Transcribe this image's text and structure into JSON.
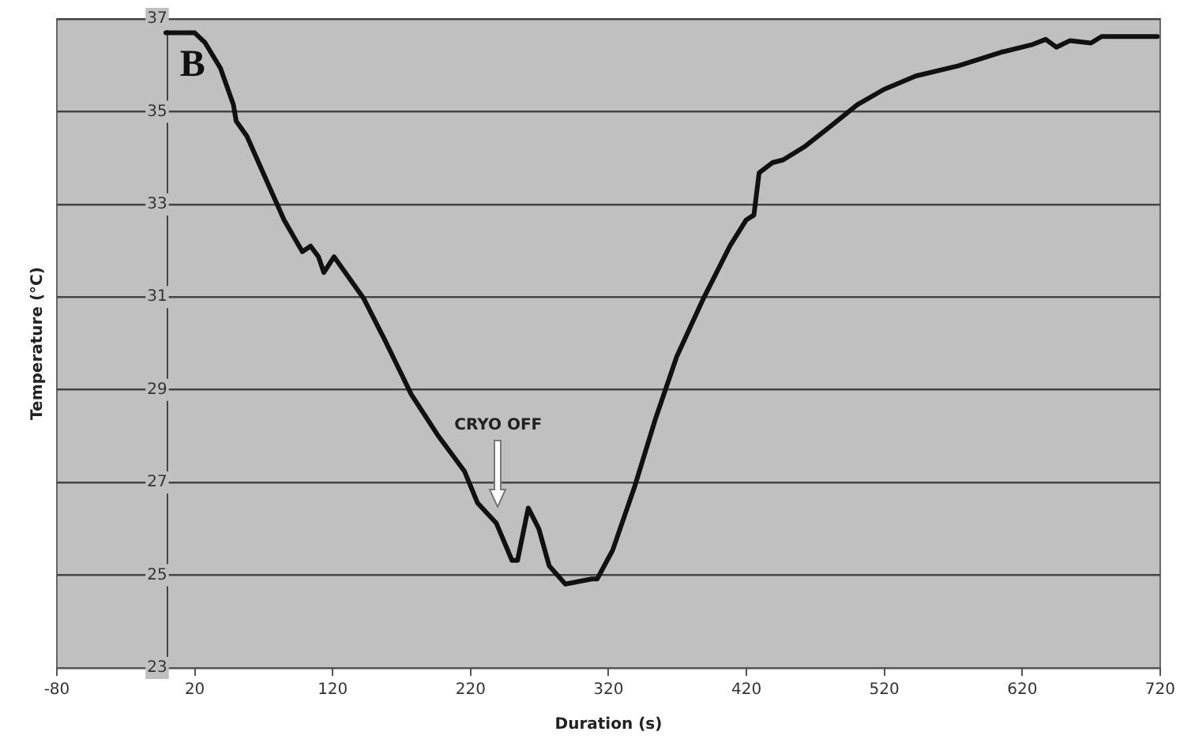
{
  "chart_data": {
    "type": "line",
    "xlabel": "Duration (s)",
    "ylabel": "Temperature (°C)",
    "annotations": [
      "B",
      "CRYO OFF"
    ],
    "xlim": [
      -80,
      720
    ],
    "xticks": [
      -80,
      20,
      120,
      220,
      320,
      420,
      520,
      620,
      720
    ],
    "ylim": [
      23,
      37
    ],
    "yticks": [
      23,
      25,
      27,
      29,
      31,
      33,
      35,
      37
    ],
    "grid": "y",
    "marker": "none",
    "line_style": "solid",
    "legend": false,
    "series": [
      {
        "color": "#111111",
        "x": [
          -1,
          20,
          27.4,
          38.6,
          48,
          50,
          57.8,
          73,
          84.8,
          98,
          104,
          109.7,
          113.6,
          121,
          142.5,
          158,
          177,
          196,
          215.6,
          225,
          238.7,
          250,
          254,
          261.8,
          269.5,
          277,
          288.7,
          308,
          311.8,
          323,
          338.8,
          354,
          369.5,
          388.8,
          408,
          419.7,
          425.4,
          429.2,
          438.8,
          446.6,
          461.9,
          481.2,
          500.4,
          519.7,
          542.8,
          573.6,
          604.4,
          627.5,
          637,
          644.8,
          654.4,
          669.8,
          677.5,
          717.9
        ],
        "values": [
          36.7,
          36.7,
          36.49,
          35.94,
          35.15,
          34.8,
          34.47,
          33.45,
          32.66,
          31.98,
          32.1,
          31.87,
          31.53,
          31.87,
          30.97,
          30.06,
          28.9,
          28.03,
          27.24,
          26.56,
          26.12,
          25.32,
          25.32,
          26.45,
          26.0,
          25.2,
          24.81,
          24.92,
          24.92,
          25.54,
          26.9,
          28.37,
          29.72,
          30.97,
          32.1,
          32.66,
          32.77,
          33.68,
          33.9,
          33.96,
          34.24,
          34.69,
          35.15,
          35.48,
          35.77,
          35.99,
          36.28,
          36.45,
          36.56,
          36.39,
          36.53,
          36.48,
          36.62,
          36.62
        ]
      }
    ]
  }
}
